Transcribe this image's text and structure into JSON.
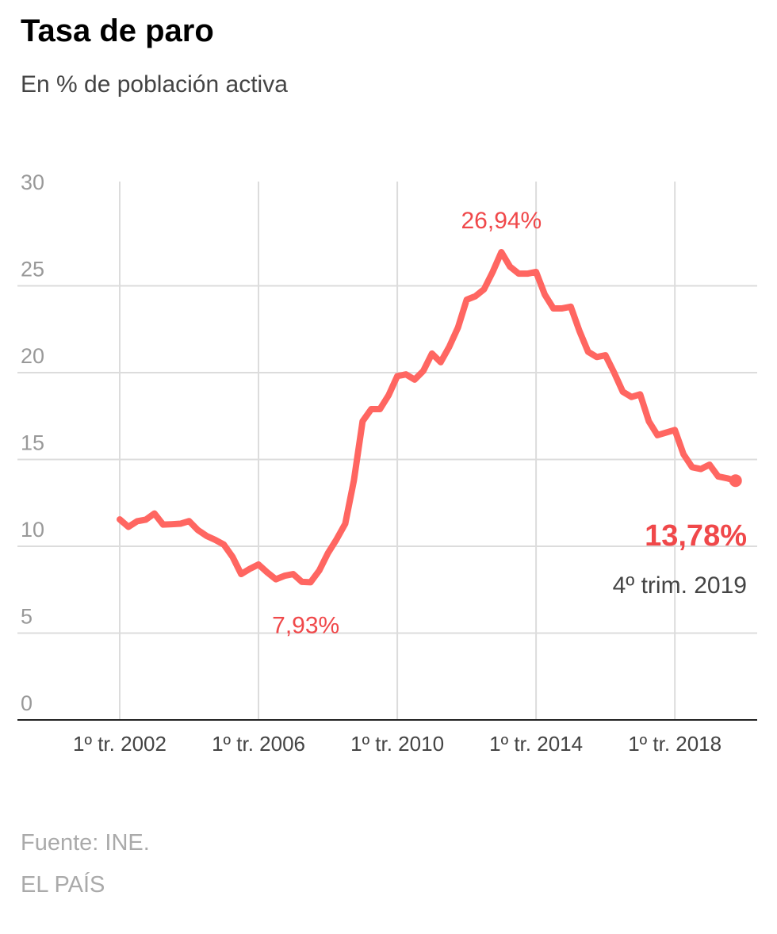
{
  "chart_data": {
    "type": "line",
    "title": "Tasa de paro",
    "subtitle": "En % de población activa",
    "categories": [
      "1º tr. 2002",
      null,
      null,
      null,
      null,
      null,
      null,
      null,
      null,
      null,
      null,
      null,
      null,
      null,
      null,
      null,
      "1º tr. 2006",
      null,
      null,
      null,
      null,
      null,
      null,
      null,
      null,
      null,
      null,
      null,
      null,
      null,
      null,
      null,
      "1º tr. 2010",
      null,
      null,
      null,
      null,
      null,
      null,
      null,
      null,
      null,
      null,
      null,
      null,
      null,
      null,
      null,
      "1º tr. 2014",
      null,
      null,
      null,
      null,
      null,
      null,
      null,
      null,
      null,
      null,
      null,
      null,
      null,
      null,
      null,
      "1º tr. 2018",
      null,
      null,
      null,
      null,
      null,
      null,
      null
    ],
    "series": [
      {
        "name": "Tasa de paro",
        "color": "#ff6661",
        "values": [
          11.55,
          11.12,
          11.44,
          11.53,
          11.89,
          11.25,
          11.27,
          11.3,
          11.45,
          10.94,
          10.6,
          10.37,
          10.1,
          9.4,
          8.4,
          8.7,
          8.95,
          8.5,
          8.1,
          8.3,
          8.4,
          7.95,
          7.93,
          8.6,
          9.6,
          10.4,
          11.3,
          13.8,
          17.2,
          17.9,
          17.9,
          18.7,
          19.8,
          19.9,
          19.6,
          20.1,
          21.1,
          20.6,
          21.5,
          22.6,
          24.2,
          24.4,
          24.8,
          25.8,
          26.94,
          26.1,
          25.7,
          25.7,
          25.8,
          24.5,
          23.7,
          23.7,
          23.8,
          22.4,
          21.2,
          20.9,
          21.0,
          20.0,
          18.9,
          18.6,
          18.75,
          17.2,
          16.4,
          16.55,
          16.7,
          15.3,
          14.55,
          14.45,
          14.7,
          14.02,
          13.92,
          13.78
        ],
        "value_labels": [
          null,
          null,
          null,
          null,
          null,
          null,
          null,
          null,
          null,
          null,
          null,
          null,
          null,
          null,
          null,
          null,
          null,
          null,
          null,
          null,
          null,
          null,
          "7,93%",
          null,
          null,
          null,
          null,
          null,
          null,
          null,
          null,
          null,
          null,
          null,
          null,
          null,
          null,
          null,
          null,
          null,
          null,
          null,
          null,
          null,
          "26,94%",
          null,
          null,
          null,
          null,
          null,
          null,
          null,
          null,
          null,
          null,
          null,
          null,
          null,
          null,
          null,
          null,
          null,
          null,
          null,
          null,
          null,
          null,
          null,
          null,
          null,
          null,
          "13,78%"
        ]
      }
    ],
    "annotation": "4º trim. 2019",
    "ylim": [
      0,
      30
    ],
    "yticks": [
      0,
      5,
      10,
      15,
      20,
      25,
      30
    ],
    "grid": true,
    "source": "Fuente: INE.",
    "credit": "EL PAÍS"
  }
}
